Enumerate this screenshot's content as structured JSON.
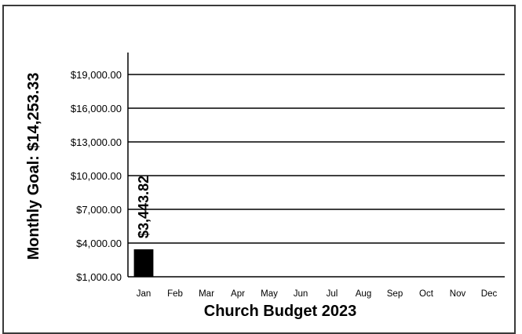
{
  "chart_data": {
    "type": "bar",
    "categories": [
      "Jan",
      "Feb",
      "Mar",
      "Apr",
      "May",
      "Jun",
      "Jul",
      "Aug",
      "Sep",
      "Oct",
      "Nov",
      "Dec"
    ],
    "values": [
      3443.82,
      null,
      null,
      null,
      null,
      null,
      null,
      null,
      null,
      null,
      null,
      null
    ],
    "data_labels": [
      "$3,443.82",
      "",
      "",
      "",
      "",
      "",
      "",
      "",
      "",
      "",
      "",
      ""
    ],
    "ylabel": "Monthly Goal:  $14,253.33",
    "xlabel": "Church Budget 2023",
    "ylim": [
      1000,
      20000
    ],
    "yticks": [
      1000,
      4000,
      7000,
      10000,
      13000,
      16000,
      19000
    ],
    "ytick_labels": [
      "$1,000.00",
      "$4,000.00",
      "$7,000.00",
      "$10,000.00",
      "$13,000.00",
      "$16,000.00",
      "$19,000.00"
    ],
    "grid": true,
    "bar_color": "#000000",
    "grid_color": "#000000"
  }
}
